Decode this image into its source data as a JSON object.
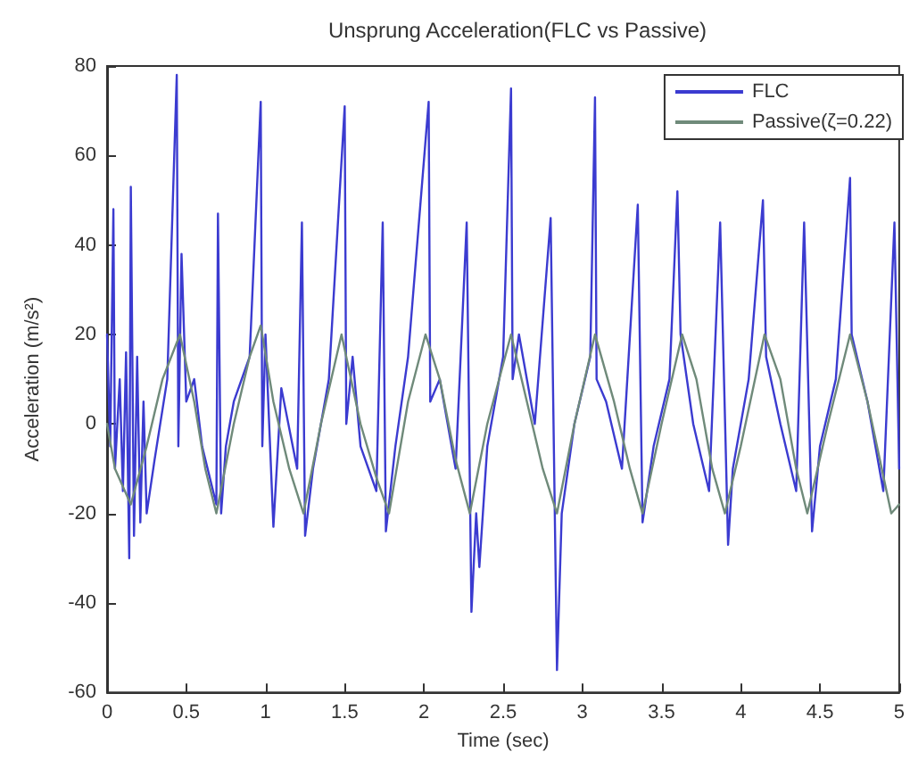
{
  "chart_data": {
    "type": "line",
    "title": "Unsprung Acceleration(FLC vs Passive)",
    "xlabel": "Time (sec)",
    "ylabel": "Acceleration (m/s²)",
    "xlim": [
      0,
      5
    ],
    "xticks": [
      0,
      0.5,
      1,
      1.5,
      2,
      2.5,
      3,
      3.5,
      4,
      4.5,
      5
    ],
    "ylim": [
      -60,
      80
    ],
    "yticks": [
      -60,
      -40,
      -20,
      0,
      20,
      40,
      60,
      80
    ],
    "grid": false,
    "legend": "top right",
    "marker": "none",
    "line_style": "solid",
    "series": [
      {
        "name": "FLC",
        "color": "#3b3bd0",
        "x": [
          0,
          0.02,
          0.04,
          0.05,
          0.08,
          0.1,
          0.12,
          0.14,
          0.15,
          0.17,
          0.19,
          0.21,
          0.23,
          0.25,
          0.3,
          0.38,
          0.44,
          0.45,
          0.47,
          0.5,
          0.55,
          0.6,
          0.69,
          0.7,
          0.72,
          0.75,
          0.8,
          0.9,
          0.97,
          0.98,
          1,
          1.05,
          1.1,
          1.2,
          1.23,
          1.25,
          1.3,
          1.4,
          1.5,
          1.51,
          1.55,
          1.6,
          1.7,
          1.74,
          1.76,
          1.82,
          1.9,
          2.03,
          2.04,
          2.1,
          2.2,
          2.27,
          2.3,
          2.33,
          2.35,
          2.4,
          2.5,
          2.55,
          2.56,
          2.6,
          2.7,
          2.8,
          2.84,
          2.87,
          2.95,
          3.05,
          3.08,
          3.09,
          3.15,
          3.25,
          3.35,
          3.38,
          3.45,
          3.55,
          3.6,
          3.62,
          3.7,
          3.8,
          3.87,
          3.92,
          3.95,
          4.05,
          4.14,
          4.16,
          4.25,
          4.35,
          4.4,
          4.45,
          4.5,
          4.6,
          4.69,
          4.7,
          4.8,
          4.9,
          4.97,
          5
        ],
        "values": [
          20,
          -5,
          48,
          -10,
          10,
          -15,
          16,
          -30,
          53,
          -25,
          15,
          -22,
          5,
          -20,
          -8,
          10,
          78,
          -5,
          38,
          5,
          10,
          -5,
          -18,
          47,
          -20,
          -5,
          5,
          15,
          72,
          -5,
          20,
          -23,
          8,
          -10,
          45,
          -25,
          -10,
          10,
          71,
          0,
          15,
          -5,
          -15,
          45,
          -24,
          -5,
          15,
          72,
          5,
          10,
          -10,
          45,
          -42,
          -20,
          -32,
          -5,
          15,
          75,
          10,
          20,
          0,
          46,
          -55,
          -20,
          0,
          15,
          73,
          10,
          5,
          -10,
          49,
          -22,
          -5,
          10,
          52,
          20,
          0,
          -15,
          45,
          -27,
          -10,
          10,
          50,
          15,
          0,
          -15,
          45,
          -24,
          -5,
          10,
          55,
          20,
          5,
          -15,
          45,
          -10
        ]
      },
      {
        "name": "Passive(ζ=0.22)",
        "color": "#6f8a7a",
        "x": [
          0,
          0.05,
          0.15,
          0.25,
          0.35,
          0.46,
          0.55,
          0.62,
          0.69,
          0.8,
          0.9,
          0.97,
          1.05,
          1.15,
          1.24,
          1.35,
          1.48,
          1.6,
          1.7,
          1.78,
          1.9,
          2.01,
          2.1,
          2.2,
          2.29,
          2.4,
          2.55,
          2.65,
          2.75,
          2.84,
          2.95,
          3.08,
          3.2,
          3.3,
          3.38,
          3.5,
          3.63,
          3.72,
          3.82,
          3.9,
          4,
          4.15,
          4.25,
          4.35,
          4.42,
          4.55,
          4.69,
          4.8,
          4.95,
          5
        ],
        "values": [
          0,
          -10,
          -18,
          -5,
          10,
          20,
          5,
          -10,
          -20,
          0,
          15,
          22,
          5,
          -10,
          -20,
          0,
          20,
          0,
          -12,
          -20,
          5,
          20,
          10,
          -8,
          -20,
          0,
          20,
          5,
          -10,
          -20,
          0,
          20,
          5,
          -10,
          -20,
          0,
          20,
          10,
          -10,
          -20,
          -5,
          20,
          10,
          -10,
          -20,
          0,
          20,
          5,
          -20,
          -18
        ]
      }
    ]
  }
}
